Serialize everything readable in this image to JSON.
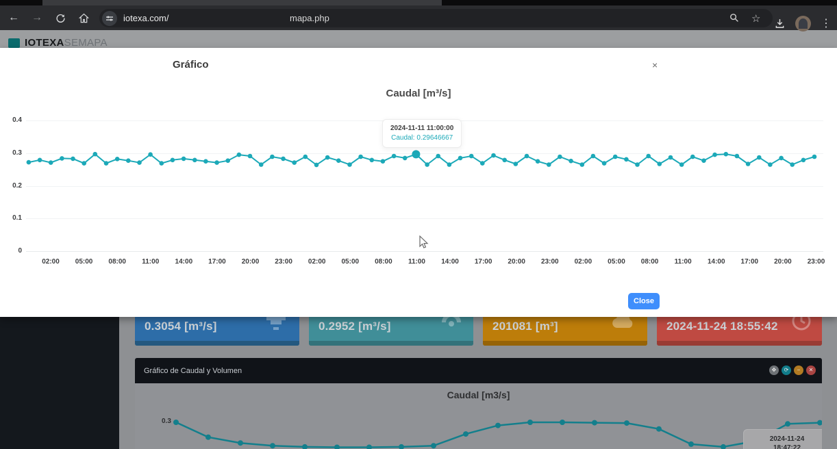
{
  "browser": {
    "url_host": "iotexa.com/",
    "url_page": "mapa.php"
  },
  "app_header": {
    "brand_bold": "IOTEXA",
    "brand_light": "SEMAPA"
  },
  "modal": {
    "title": "Gráfico",
    "close_x": "×",
    "close_button_label": "Close"
  },
  "cards": [
    {
      "value": "0.3054 [m³/s]",
      "color": "#2d6da8",
      "color_dark": "#24587f",
      "icon": "flow-meter-icon"
    },
    {
      "value": "0.2952 [m³/s]",
      "color": "#408e98",
      "color_dark": "#33727a",
      "icon": "gauge-icon"
    },
    {
      "value": "201081 [m³]",
      "color": "#bd7d0a",
      "color_dark": "#966307",
      "icon": "cloud-icon"
    },
    {
      "value": "2024-11-24 18:55:42",
      "color": "#bf4a42",
      "color_dark": "#993b34",
      "icon": "clock-icon"
    }
  ],
  "panel": {
    "title": "Gráfico de Caudal y Volumen",
    "controls": [
      {
        "name": "move",
        "glyph": "✥",
        "color": "#6e7276"
      },
      {
        "name": "refresh",
        "glyph": "⟳",
        "color": "#117c8a"
      },
      {
        "name": "minimize",
        "glyph": "−",
        "color": "#b27b23"
      },
      {
        "name": "close",
        "glyph": "✕",
        "color": "#a94442"
      }
    ]
  },
  "chart_data": [
    {
      "type": "line",
      "title": "Caudal [m³/s]",
      "xlabel": "",
      "ylabel": "",
      "ylim": [
        0,
        0.4
      ],
      "grid": true,
      "legend": false,
      "line_color": "#1ca9b8",
      "y_tick_labels": [
        "0.4",
        "0.3",
        "0.2",
        "0.1",
        "0"
      ],
      "x_tick_labels": [
        "02:00",
        "05:00",
        "08:00",
        "11:00",
        "14:00",
        "17:00",
        "20:00",
        "23:00",
        "02:00",
        "05:00",
        "08:00",
        "11:00",
        "14:00",
        "17:00",
        "20:00",
        "23:00",
        "02:00",
        "05:00",
        "08:00",
        "11:00",
        "14:00",
        "17:00",
        "20:00",
        "23:00"
      ],
      "series": [
        {
          "name": "Caudal",
          "values": [
            0.272,
            0.279,
            0.271,
            0.284,
            0.283,
            0.269,
            0.297,
            0.269,
            0.282,
            0.277,
            0.271,
            0.296,
            0.269,
            0.279,
            0.283,
            0.279,
            0.275,
            0.271,
            0.277,
            0.295,
            0.291,
            0.265,
            0.289,
            0.283,
            0.271,
            0.289,
            0.264,
            0.287,
            0.277,
            0.265,
            0.289,
            0.279,
            0.275,
            0.291,
            0.285,
            0.29646667,
            0.265,
            0.291,
            0.265,
            0.285,
            0.291,
            0.269,
            0.293,
            0.279,
            0.267,
            0.291,
            0.275,
            0.265,
            0.289,
            0.276,
            0.265,
            0.291,
            0.269,
            0.289,
            0.281,
            0.265,
            0.291,
            0.267,
            0.287,
            0.265,
            0.289,
            0.277,
            0.295,
            0.297,
            0.291,
            0.267,
            0.287,
            0.265,
            0.285,
            0.265,
            0.279,
            0.289
          ]
        }
      ],
      "hover_index": 35,
      "hover_line1": "2024-11-11 11:00:00",
      "hover_line2": "Caudal: 0.29646667"
    },
    {
      "type": "line",
      "title": "Caudal [m3/s]",
      "visible_y_tick": "0.3",
      "line_color": "#137f8c",
      "series": [
        {
          "name": "Caudal",
          "values": [
            0.3,
            0.262,
            0.247,
            0.24,
            0.237,
            0.236,
            0.236,
            0.237,
            0.24,
            0.27,
            0.292,
            0.3,
            0.3,
            0.299,
            0.298,
            0.283,
            0.244,
            0.237,
            0.252,
            0.296,
            0.299
          ]
        }
      ],
      "tooltip_line1": "2024-11-24",
      "tooltip_line2": "18:47:22"
    }
  ]
}
